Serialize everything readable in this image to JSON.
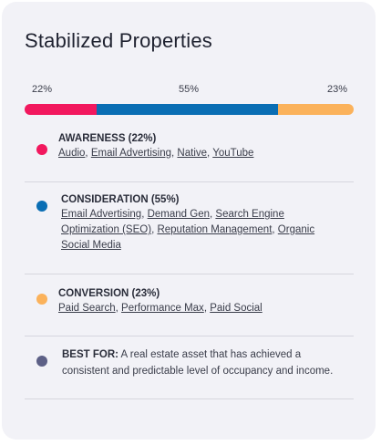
{
  "title": "Stabilized Properties",
  "colors": {
    "awareness": "#f2185e",
    "consideration": "#0a6eb4",
    "conversion": "#fbb25b",
    "best_for": "#5d6086"
  },
  "bar": {
    "segments": [
      {
        "key": "awareness",
        "percent": 22,
        "label": "22%"
      },
      {
        "key": "consideration",
        "percent": 55,
        "label": "55%"
      },
      {
        "key": "conversion",
        "percent": 23,
        "label": "23%"
      }
    ]
  },
  "sections": {
    "awareness": {
      "title": "AWARENESS (22%)",
      "links": [
        "Audio",
        "Email Advertising",
        "Native",
        "YouTube"
      ]
    },
    "consideration": {
      "title": "CONSIDERATION (55%)",
      "links": [
        "Email Advertising",
        "Demand Gen",
        "Search Engine Optimization (SEO)",
        "Reputation Management",
        "Organic Social Media"
      ]
    },
    "conversion": {
      "title": "CONVERSION (23%)",
      "links": [
        "Paid Search",
        "Performance Max",
        "Paid Social"
      ]
    },
    "best_for": {
      "label": "BEST FOR:",
      "text": "A real estate asset that has achieved a consistent and predictable level of occupancy and income."
    }
  }
}
